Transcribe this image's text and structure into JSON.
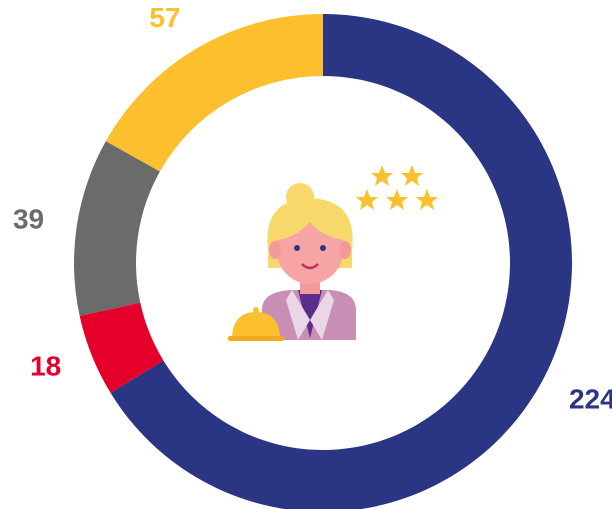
{
  "chart_data": {
    "type": "donut",
    "values": [
      224,
      18,
      39,
      57
    ],
    "colors": [
      "#2a3683",
      "#e4002b",
      "#6b6b6b",
      "#fcc02e"
    ]
  }
}
